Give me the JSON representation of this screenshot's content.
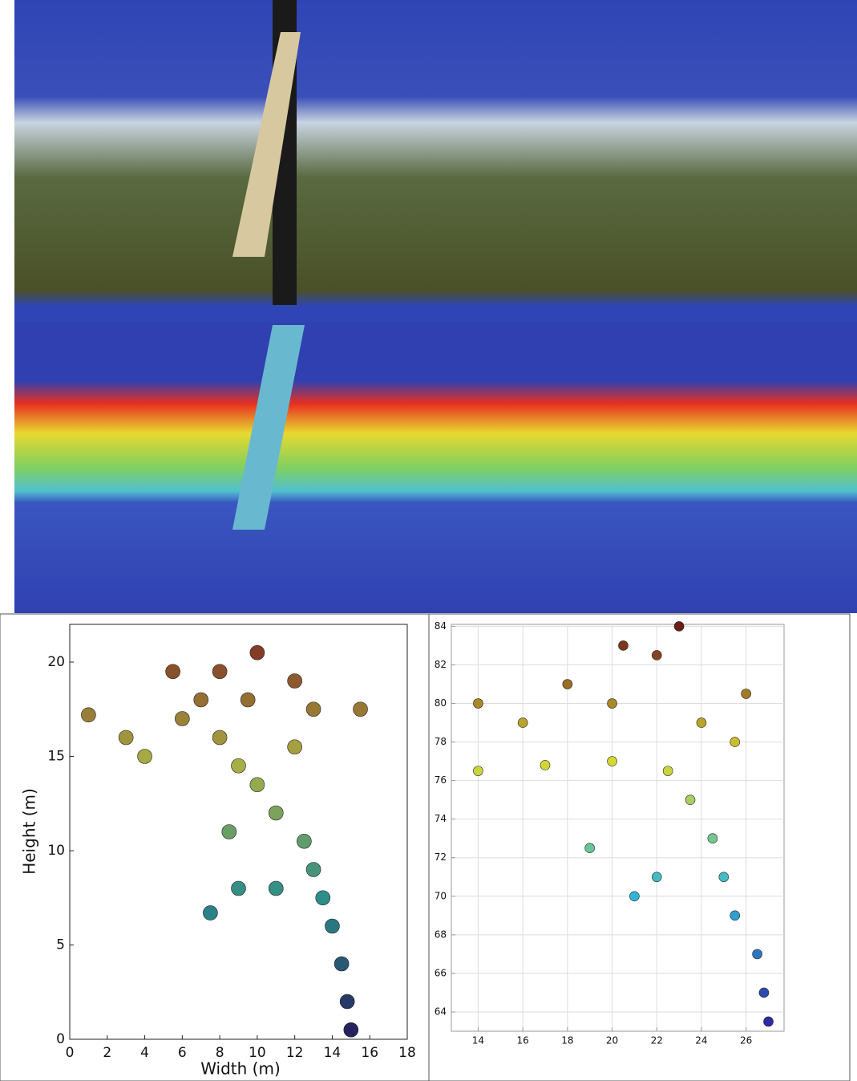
{
  "chart_data": [
    {
      "type": "scatter",
      "xlabel": "Width (m)",
      "ylabel": "Height (m)",
      "x": [
        15,
        14.8,
        14.5,
        14,
        13.5,
        13,
        12.5,
        11,
        10,
        9,
        8,
        7,
        8,
        10,
        12,
        13,
        15.5,
        6,
        3,
        1,
        4,
        9,
        11,
        7.5,
        8.5,
        12,
        5.5,
        9.5
      ],
      "y": [
        0.5,
        2,
        4,
        6,
        7.5,
        9,
        10.5,
        12,
        13.5,
        14.5,
        16,
        18,
        19.5,
        20.5,
        19,
        17.5,
        17.5,
        17,
        16,
        17.2,
        15,
        8,
        8,
        6.7,
        11,
        15.5,
        19.5,
        18
      ],
      "colors": [
        "#261a5a",
        "#2b8c8a",
        "#a9b044",
        "#7a1e1e"
      ],
      "xlim": [
        0,
        18
      ],
      "ylim": [
        0,
        22
      ],
      "xticks": [
        0,
        2,
        4,
        6,
        8,
        10,
        12,
        14,
        16,
        18
      ],
      "yticks": [
        0,
        5,
        10,
        15,
        20
      ],
      "grid": false
    },
    {
      "type": "scatter",
      "x": [
        27,
        26.8,
        26.5,
        25.5,
        25,
        24.5,
        23.5,
        22.5,
        20,
        17,
        14,
        21,
        19,
        22,
        20,
        18,
        22,
        24,
        25.5,
        26,
        16,
        20.5,
        23,
        14
      ],
      "y": [
        63.5,
        65,
        67,
        69,
        71,
        73,
        75,
        76.5,
        77,
        76.8,
        76.5,
        70,
        72.5,
        71,
        80,
        81,
        82.5,
        79,
        78,
        80.5,
        79,
        83,
        84,
        80
      ],
      "colors": [
        "#2d1fa0",
        "#2fb6d8",
        "#d8d830",
        "#6a1a1a"
      ],
      "xlim": [
        12.8,
        27.7
      ],
      "ylim": [
        63,
        84.1
      ],
      "xticks": [
        14,
        16,
        18,
        20,
        22,
        24,
        26
      ],
      "yticks": [
        64,
        66,
        68,
        70,
        72,
        74,
        76,
        78,
        80,
        82,
        84
      ],
      "grid": true
    }
  ]
}
